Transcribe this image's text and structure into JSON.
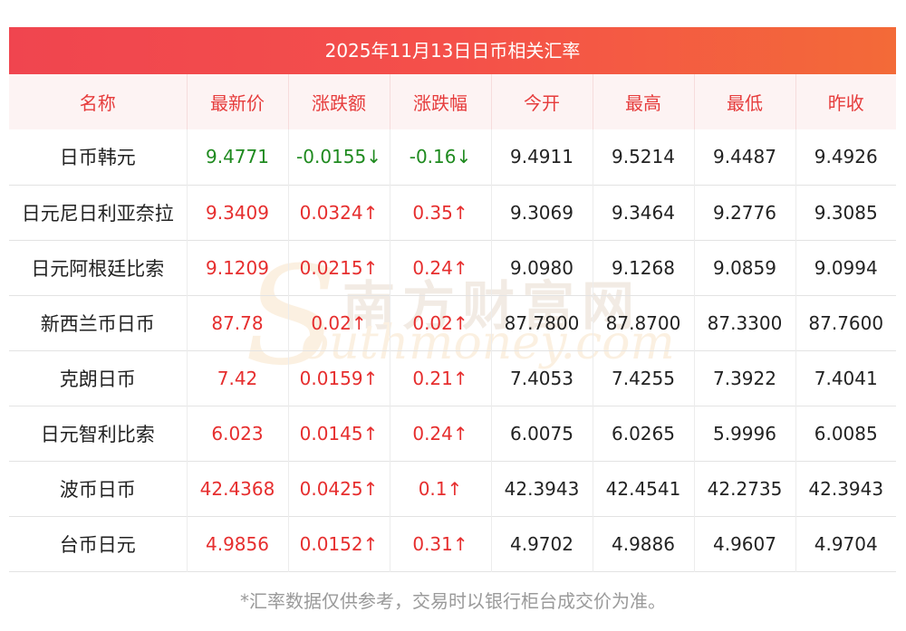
{
  "title": "2025年11月13日日币相关汇率",
  "columns": [
    "名称",
    "最新价",
    "涨跌额",
    "涨跌幅",
    "今开",
    "最高",
    "最低",
    "昨收"
  ],
  "rows": [
    {
      "name": "日币韩元",
      "latest": "9.4771",
      "change": "-0.0155↓",
      "pct": "-0.16↓",
      "open": "9.4911",
      "high": "9.5214",
      "low": "9.4487",
      "prev": "9.4926",
      "dir": "down"
    },
    {
      "name": "日元尼日利亚奈拉",
      "latest": "9.3409",
      "change": "0.0324↑",
      "pct": "0.35↑",
      "open": "9.3069",
      "high": "9.3464",
      "low": "9.2776",
      "prev": "9.3085",
      "dir": "up"
    },
    {
      "name": "日元阿根廷比索",
      "latest": "9.1209",
      "change": "0.0215↑",
      "pct": "0.24↑",
      "open": "9.0980",
      "high": "9.1268",
      "low": "9.0859",
      "prev": "9.0994",
      "dir": "up"
    },
    {
      "name": "新西兰币日币",
      "latest": "87.78",
      "change": "0.02↑",
      "pct": "0.02↑",
      "open": "87.7800",
      "high": "87.8700",
      "low": "87.3300",
      "prev": "87.7600",
      "dir": "up"
    },
    {
      "name": "克朗日币",
      "latest": "7.42",
      "change": "0.0159↑",
      "pct": "0.21↑",
      "open": "7.4053",
      "high": "7.4255",
      "low": "7.3922",
      "prev": "7.4041",
      "dir": "up"
    },
    {
      "name": "日元智利比索",
      "latest": "6.023",
      "change": "0.0145↑",
      "pct": "0.24↑",
      "open": "6.0075",
      "high": "6.0265",
      "low": "5.9996",
      "prev": "6.0085",
      "dir": "up"
    },
    {
      "name": "波币日币",
      "latest": "42.4368",
      "change": "0.0425↑",
      "pct": "0.1↑",
      "open": "42.3943",
      "high": "42.4541",
      "low": "42.2735",
      "prev": "42.3943",
      "dir": "up"
    },
    {
      "name": "台币日元",
      "latest": "4.9856",
      "change": "0.0152↑",
      "pct": "0.31↑",
      "open": "4.9702",
      "high": "4.9886",
      "low": "4.9607",
      "prev": "4.9704",
      "dir": "up"
    }
  ],
  "watermark": {
    "cn": "南方财富网",
    "en": "outhmoney.com",
    "s": "S"
  },
  "footnote": "*汇率数据仅供参考，交易时以银行柜台成交价为准。",
  "colors": {
    "up": "#e62e2e",
    "down": "#1f8a1f",
    "header_text": "#e63c3c",
    "title_bg_start": "#f0454f",
    "title_bg_end": "#f36a38"
  }
}
